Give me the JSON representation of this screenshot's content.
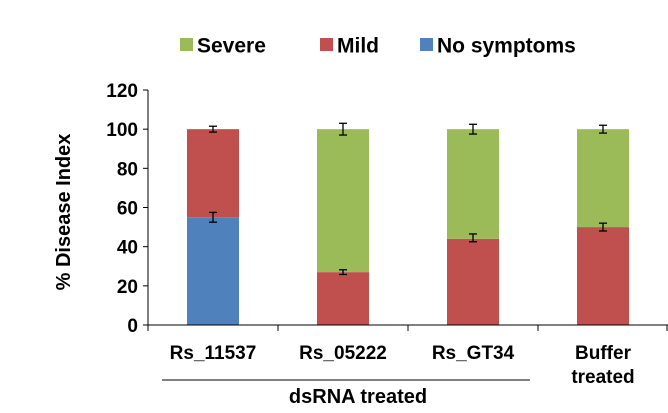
{
  "chart_data": {
    "type": "bar",
    "stacked": true,
    "title": "",
    "ylabel": "% Disease Index",
    "ylim": [
      0,
      120
    ],
    "yticks": [
      0,
      20,
      40,
      60,
      80,
      100,
      120
    ],
    "categories": [
      {
        "label": "Rs_11537",
        "label_lines": [
          "Rs_11537"
        ]
      },
      {
        "label": "Rs_05222",
        "label_lines": [
          "Rs_05222"
        ]
      },
      {
        "label": "Rs_GT34",
        "label_lines": [
          "Rs_GT34"
        ]
      },
      {
        "label": "Buffer treated",
        "label_lines": [
          "Buffer",
          "treated"
        ]
      }
    ],
    "group_label": {
      "text": "dsRNA treated",
      "categories": [
        "Rs_11537",
        "Rs_05222",
        "Rs_GT34"
      ]
    },
    "legend": {
      "position": "top",
      "order": [
        "Severe",
        "Mild",
        "No symptoms"
      ]
    },
    "series": [
      {
        "name": "No symptoms",
        "color": "#4f81bd",
        "values": [
          55,
          0,
          0,
          0
        ]
      },
      {
        "name": "Mild",
        "color": "#c0504d",
        "values": [
          45,
          27,
          44,
          50
        ]
      },
      {
        "name": "Severe",
        "color": "#9bbb59",
        "values": [
          0,
          73,
          56,
          50
        ]
      }
    ],
    "error_bars": [
      {
        "category": "Rs_11537",
        "series": "No symptoms",
        "at": 55,
        "err": 2.5
      },
      {
        "category": "Rs_11537",
        "series": "Mild",
        "at": 100,
        "err": 1.5
      },
      {
        "category": "Rs_05222",
        "series": "Mild",
        "at": 27,
        "err": 1.2
      },
      {
        "category": "Rs_05222",
        "series": "Severe",
        "at": 100,
        "err": 3.0
      },
      {
        "category": "Rs_GT34",
        "series": "Mild",
        "at": 44.5,
        "err": 2.0
      },
      {
        "category": "Rs_GT34",
        "series": "Severe",
        "at": 100,
        "err": 2.5
      },
      {
        "category": "Buffer treated",
        "series": "Mild",
        "at": 50,
        "err": 2.0
      },
      {
        "category": "Buffer treated",
        "series": "Severe",
        "at": 100,
        "err": 2.0
      }
    ],
    "grid": false
  }
}
